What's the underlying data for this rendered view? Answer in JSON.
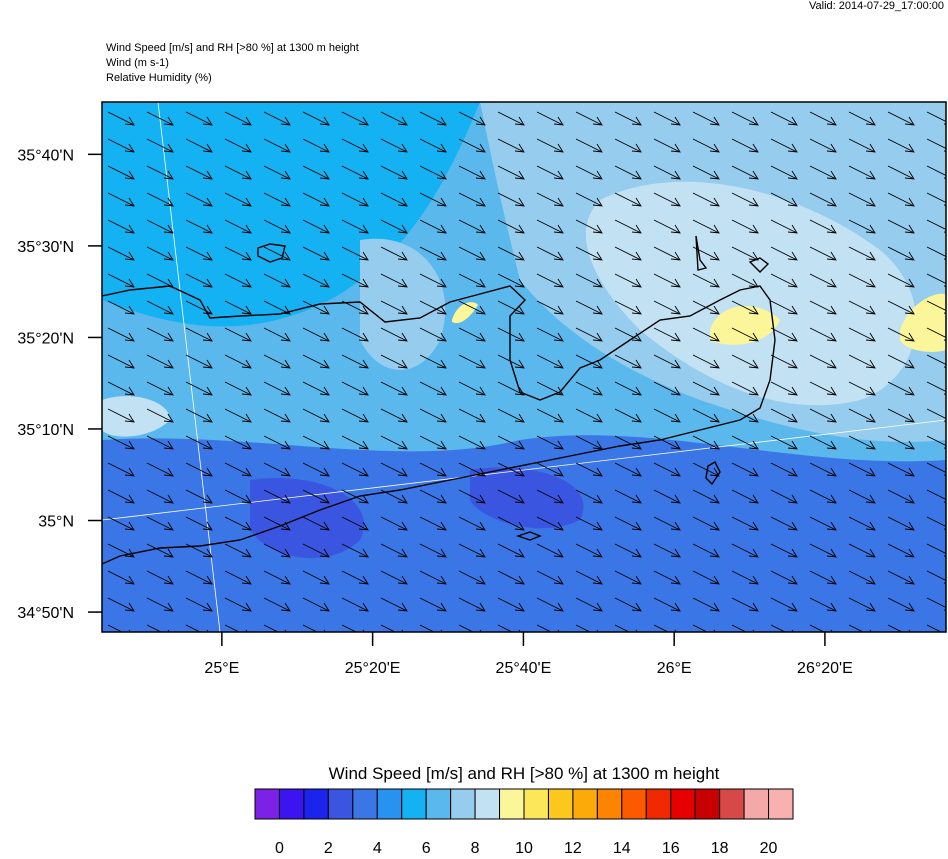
{
  "valid_time": "Valid: 2014-07-29_17:00:00",
  "header": {
    "title": "Wind Speed [m/s] and RH [>80 %] at 1300 m height",
    "line2": "Wind   (m s-1)",
    "line3": "Relative Humidity   (%)"
  },
  "map": {
    "lon_range": [
      24.735,
      26.601
    ],
    "lat_range": [
      34.797,
      35.762
    ],
    "lat_ticks": [
      {
        "value": 35.6667,
        "label": "35°40'N"
      },
      {
        "value": 35.5,
        "label": "35°30'N"
      },
      {
        "value": 35.3333,
        "label": "35°20'N"
      },
      {
        "value": 35.1667,
        "label": "35°10'N"
      },
      {
        "value": 35,
        "label": "35°N"
      },
      {
        "value": 34.8333,
        "label": "34°50'N"
      }
    ],
    "lon_ticks": [
      {
        "value": 25,
        "label": "25°E"
      },
      {
        "value": 25.3333,
        "label": "25°20'E"
      },
      {
        "value": 25.6667,
        "label": "25°40'E"
      },
      {
        "value": 26,
        "label": "26°E"
      },
      {
        "value": 26.3333,
        "label": "26°20'E"
      }
    ]
  },
  "colorbar": {
    "title": "Wind Speed [m/s] and RH [>80 %] at 1300 m height",
    "colors": [
      "#7b22e6",
      "#3c14f0",
      "#1a24ec",
      "#3a56e0",
      "#3a76e6",
      "#2892f0",
      "#14b2f2",
      "#5ab8ec",
      "#96ccee",
      "#c2e2f4",
      "#fcf69a",
      "#fce65a",
      "#fcc81e",
      "#fcaa0a",
      "#fc8400",
      "#fc5a00",
      "#f02800",
      "#e60000",
      "#c80000",
      "#d84848",
      "#f4a8a8",
      "#f8b0b0"
    ],
    "ticks": [
      0,
      2,
      4,
      6,
      8,
      10,
      12,
      14,
      16,
      18,
      20
    ]
  }
}
